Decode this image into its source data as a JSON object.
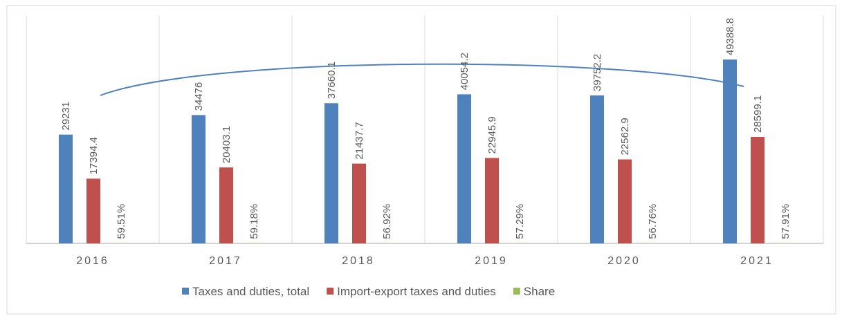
{
  "chart_data": {
    "type": "bar",
    "categories": [
      "2016",
      "2017",
      "2018",
      "2019",
      "2020",
      "2021"
    ],
    "series": [
      {
        "name": "Taxes and duties, total",
        "color": "#4f81bd",
        "values": [
          29231,
          34476,
          37660.1,
          40054.2,
          39752.2,
          49388.8
        ]
      },
      {
        "name": "Import-export taxes and duties",
        "color": "#c0504d",
        "values": [
          17394.4,
          20403.1,
          21437.7,
          22945.9,
          22562.9,
          28599.1
        ]
      },
      {
        "name": "Share",
        "color": "#9bbb59",
        "values": [
          59.51,
          59.18,
          56.92,
          57.29,
          56.76,
          57.91
        ],
        "value_labels": [
          "59.51%",
          "59.18%",
          "56.92%",
          "57.29%",
          "56.76%",
          "57.91%"
        ]
      }
    ],
    "ylim": [
      0,
      60000
    ],
    "legend": "bottom"
  }
}
